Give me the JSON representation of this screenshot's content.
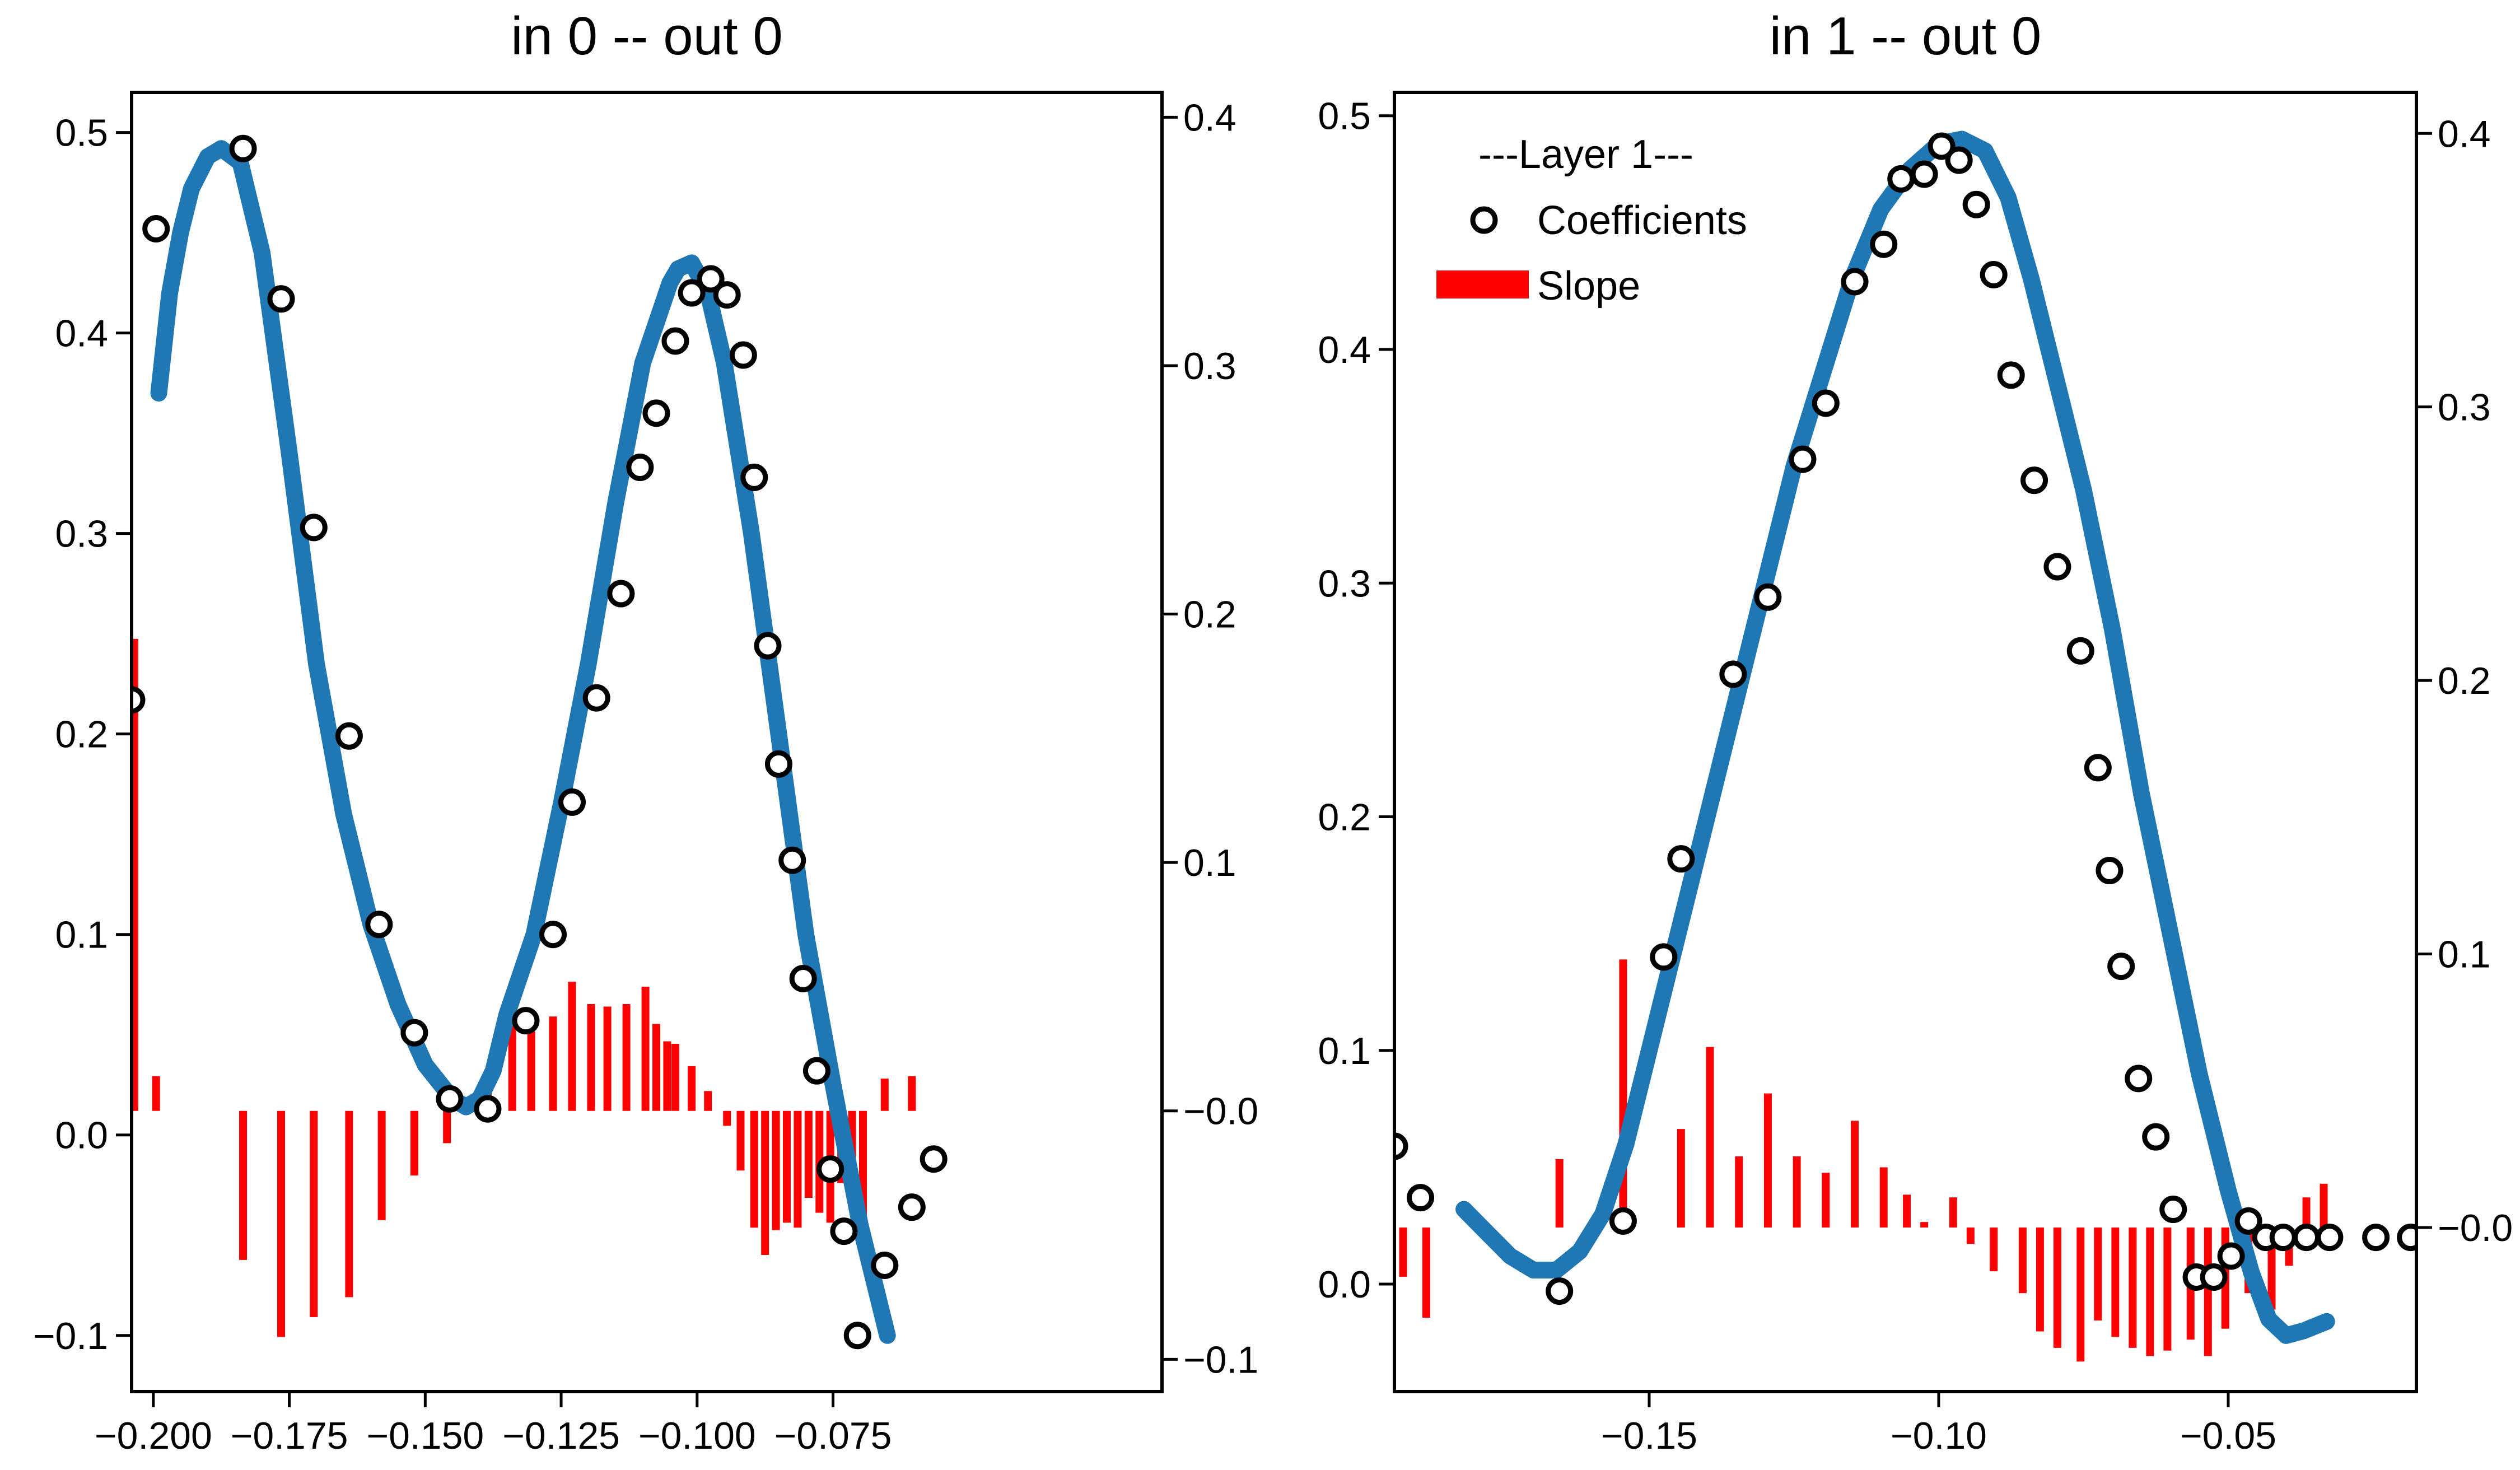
{
  "chart_data": [
    {
      "type": "scatter",
      "title": "in 0 -- out 0",
      "xlabel": "",
      "ylabel": "",
      "xlim": [
        -0.204,
        -0.0145
      ],
      "ylim": [
        -0.128,
        0.52
      ],
      "y2lim": [
        -0.113,
        0.41
      ],
      "xticks": [
        -0.2,
        -0.175,
        -0.15,
        -0.125,
        -0.1,
        -0.075
      ],
      "xtick_labels": [
        "−0.200",
        "−0.175",
        "−0.150",
        "−0.125",
        "−0.100",
        "−0.075"
      ],
      "yticks": [
        -0.1,
        0.0,
        0.1,
        0.2,
        0.3,
        0.4,
        0.5
      ],
      "ytick_labels": [
        "−0.1",
        "0.0",
        "0.1",
        "0.2",
        "0.3",
        "0.4",
        "0.5"
      ],
      "y2ticks": [
        -0.1,
        0.0,
        0.1,
        0.2,
        0.3,
        0.4
      ],
      "y2tick_labels": [
        "−0.1",
        "−0.0",
        "0.1",
        "0.2",
        "0.3",
        "0.4"
      ],
      "line_color": "#1f77b4",
      "curve": {
        "x": [
          -0.199,
          -0.197,
          -0.195,
          -0.193,
          -0.19,
          -0.1875,
          -0.184,
          -0.18,
          -0.175,
          -0.17,
          -0.165,
          -0.16,
          -0.155,
          -0.15,
          -0.145,
          -0.1425,
          -0.14,
          -0.1375,
          -0.135,
          -0.13,
          -0.125,
          -0.12,
          -0.115,
          -0.11,
          -0.105,
          -0.1035,
          -0.101,
          -0.098,
          -0.095,
          -0.09,
          -0.085,
          -0.08,
          -0.075,
          -0.07,
          -0.065
        ],
        "y": [
          0.37,
          0.42,
          0.45,
          0.472,
          0.488,
          0.492,
          0.485,
          0.44,
          0.34,
          0.235,
          0.16,
          0.105,
          0.065,
          0.035,
          0.018,
          0.014,
          0.018,
          0.032,
          0.06,
          0.1,
          0.165,
          0.235,
          0.315,
          0.385,
          0.425,
          0.432,
          0.435,
          0.42,
          0.385,
          0.3,
          0.2,
          0.1,
          0.025,
          -0.045,
          -0.1
        ]
      },
      "coefficients": {
        "label": "Coefficients",
        "x": [
          -0.204,
          -0.1995,
          -0.1835,
          -0.1765,
          -0.1705,
          -0.164,
          -0.1585,
          -0.152,
          -0.1455,
          -0.1385,
          -0.1315,
          -0.1265,
          -0.123,
          -0.1185,
          -0.114,
          -0.1105,
          -0.1075,
          -0.104,
          -0.101,
          -0.0975,
          -0.0945,
          -0.0915,
          -0.0895,
          -0.087,
          -0.085,
          -0.0825,
          -0.0805,
          -0.078,
          -0.0755,
          -0.073,
          -0.0705,
          -0.0655,
          -0.0605,
          -0.0565
        ],
        "y": [
          0.217,
          0.452,
          0.492,
          0.417,
          0.303,
          0.199,
          0.105,
          0.051,
          0.018,
          0.013,
          0.057,
          0.1,
          0.166,
          0.218,
          0.27,
          0.333,
          0.36,
          0.396,
          0.42,
          0.427,
          0.419,
          0.389,
          0.328,
          0.244,
          0.185,
          0.137,
          0.078,
          0.032,
          -0.017,
          -0.048,
          -0.1,
          -0.065,
          -0.036,
          -0.012
        ]
      },
      "slope": {
        "label": "Slope",
        "color": "#ff0000",
        "x": [
          -0.2035,
          -0.1995,
          -0.1835,
          -0.1765,
          -0.1705,
          -0.164,
          -0.158,
          -0.152,
          -0.146,
          -0.1385,
          -0.134,
          -0.1305,
          -0.1265,
          -0.123,
          -0.1195,
          -0.1165,
          -0.113,
          -0.1095,
          -0.1075,
          -0.1055,
          -0.104,
          -0.101,
          -0.098,
          -0.0945,
          -0.092,
          -0.0895,
          -0.0875,
          -0.0855,
          -0.0835,
          -0.0815,
          -0.0795,
          -0.0775,
          -0.0755,
          -0.0735,
          -0.0715,
          -0.0695,
          -0.0655,
          -0.0605
        ],
        "y": [
          0.19,
          0.014,
          -0.06,
          -0.091,
          -0.083,
          -0.075,
          -0.044,
          -0.026,
          -0.013,
          0.008,
          0.037,
          0.032,
          0.038,
          0.052,
          0.043,
          0.042,
          0.043,
          0.05,
          0.035,
          0.028,
          0.027,
          0.018,
          0.008,
          -0.006,
          -0.024,
          -0.047,
          -0.058,
          -0.048,
          -0.045,
          -0.047,
          -0.035,
          -0.041,
          -0.045,
          -0.029,
          -0.036,
          -0.042,
          0.013,
          0.014
        ]
      }
    },
    {
      "type": "scatter",
      "title": "in 1 -- out 0",
      "xlabel": "",
      "ylabel": "",
      "xlim": [
        -0.194,
        -0.0175
      ],
      "ylim": [
        -0.046,
        0.51
      ],
      "y2lim": [
        -0.06,
        0.415
      ],
      "xticks": [
        -0.15,
        -0.1,
        -0.05
      ],
      "xtick_labels": [
        "−0.15",
        "−0.10",
        "−0.05"
      ],
      "yticks": [
        0.0,
        0.1,
        0.2,
        0.3,
        0.4,
        0.5
      ],
      "ytick_labels": [
        "0.0",
        "0.1",
        "0.2",
        "0.3",
        "0.4",
        "0.5"
      ],
      "y2ticks": [
        0.0,
        0.1,
        0.2,
        0.3,
        0.4
      ],
      "y2tick_labels": [
        "−0.0",
        "0.1",
        "0.2",
        "0.3",
        "0.4"
      ],
      "legend": {
        "title": "---Layer 1---",
        "position": "upper-left",
        "entries": [
          "Coefficients",
          "Slope"
        ]
      },
      "line_color": "#1f77b4",
      "curve": {
        "x": [
          -0.182,
          -0.178,
          -0.174,
          -0.17,
          -0.166,
          -0.162,
          -0.158,
          -0.154,
          -0.15,
          -0.145,
          -0.14,
          -0.135,
          -0.13,
          -0.125,
          -0.12,
          -0.115,
          -0.11,
          -0.105,
          -0.1,
          -0.096,
          -0.092,
          -0.088,
          -0.084,
          -0.08,
          -0.075,
          -0.07,
          -0.065,
          -0.06,
          -0.055,
          -0.05,
          -0.046,
          -0.043,
          -0.04,
          -0.037,
          -0.035,
          -0.033
        ],
        "y": [
          0.032,
          0.022,
          0.012,
          0.006,
          0.006,
          0.014,
          0.03,
          0.06,
          0.1,
          0.15,
          0.2,
          0.25,
          0.3,
          0.35,
          0.39,
          0.43,
          0.46,
          0.477,
          0.488,
          0.49,
          0.485,
          0.465,
          0.43,
          0.39,
          0.34,
          0.28,
          0.21,
          0.15,
          0.09,
          0.04,
          0.005,
          -0.015,
          -0.022,
          -0.02,
          -0.018,
          -0.016
        ]
      },
      "coefficients": {
        "label": "Coefficients",
        "x": [
          -0.194,
          -0.1895,
          -0.1655,
          -0.1545,
          -0.1475,
          -0.1445,
          -0.1355,
          -0.1295,
          -0.1235,
          -0.1195,
          -0.1145,
          -0.1095,
          -0.1065,
          -0.1025,
          -0.0995,
          -0.0965,
          -0.0935,
          -0.0905,
          -0.0875,
          -0.0835,
          -0.0795,
          -0.0755,
          -0.0725,
          -0.0705,
          -0.0685,
          -0.0655,
          -0.0625,
          -0.0595,
          -0.0555,
          -0.0525,
          -0.0495,
          -0.0465,
          -0.0435,
          -0.0405,
          -0.0365,
          -0.0325,
          -0.0245,
          -0.0185
        ],
        "y": [
          0.059,
          0.037,
          -0.003,
          0.027,
          0.14,
          0.182,
          0.261,
          0.294,
          0.353,
          0.377,
          0.429,
          0.445,
          0.473,
          0.475,
          0.487,
          0.481,
          0.462,
          0.432,
          0.389,
          0.344,
          0.307,
          0.271,
          0.221,
          0.177,
          0.136,
          0.088,
          0.063,
          0.032,
          0.003,
          0.003,
          0.012,
          0.027,
          0.02,
          0.02,
          0.02,
          0.02,
          0.02,
          0.02
        ]
      },
      "slope": {
        "label": "Slope",
        "color": "#ff0000",
        "x": [
          -0.1925,
          -0.1885,
          -0.1655,
          -0.1545,
          -0.1445,
          -0.1395,
          -0.1345,
          -0.1295,
          -0.1245,
          -0.1195,
          -0.1145,
          -0.1095,
          -0.1055,
          -0.1025,
          -0.0975,
          -0.0945,
          -0.0905,
          -0.0855,
          -0.0825,
          -0.0795,
          -0.0755,
          -0.0725,
          -0.0695,
          -0.0665,
          -0.0635,
          -0.0605,
          -0.0565,
          -0.0535,
          -0.0505,
          -0.0465,
          -0.0425,
          -0.0395,
          -0.0365,
          -0.0335
        ],
        "y": [
          -0.018,
          -0.033,
          0.025,
          0.098,
          0.036,
          0.066,
          0.026,
          0.049,
          0.026,
          0.02,
          0.039,
          0.022,
          0.012,
          0.002,
          0.011,
          -0.006,
          -0.016,
          -0.024,
          -0.038,
          -0.044,
          -0.049,
          -0.034,
          -0.04,
          -0.044,
          -0.047,
          -0.045,
          -0.041,
          -0.047,
          -0.037,
          -0.024,
          -0.03,
          -0.014,
          0.011,
          0.016
        ]
      }
    }
  ]
}
